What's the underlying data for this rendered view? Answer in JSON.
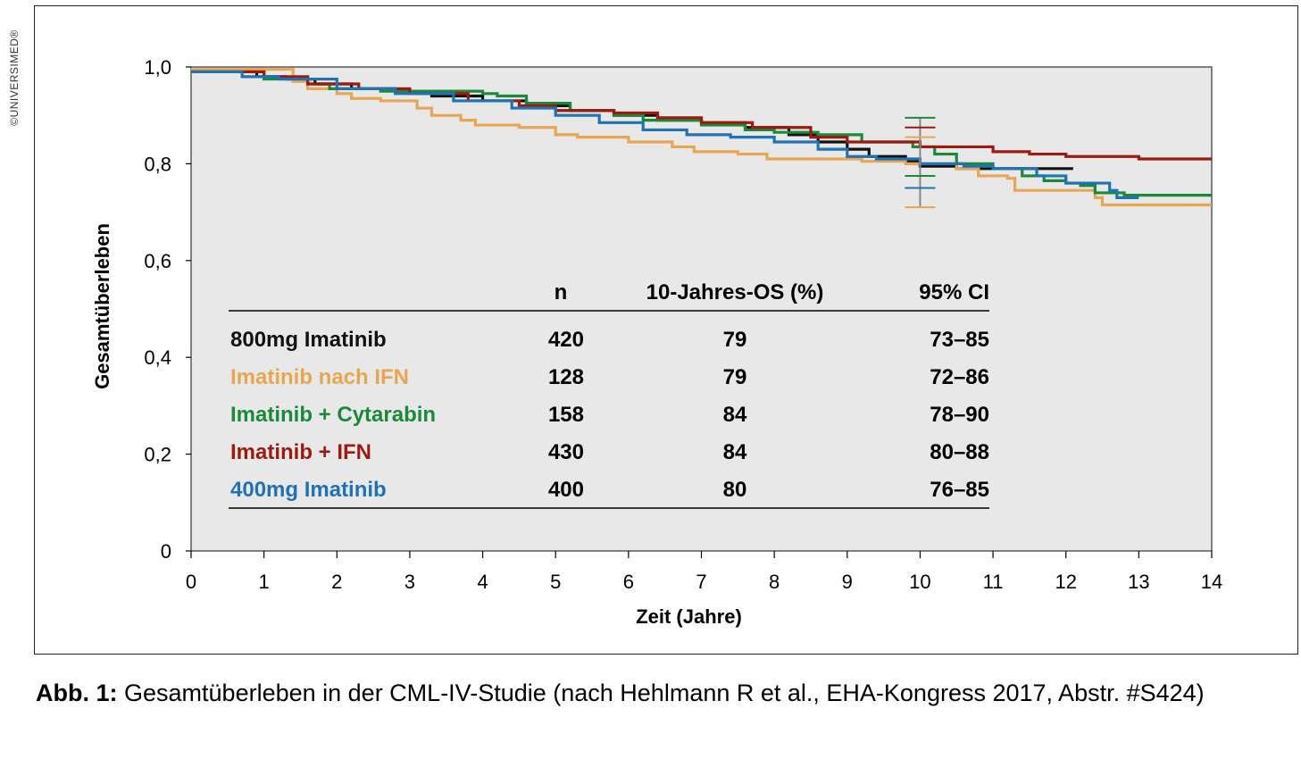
{
  "watermark": "©UNIVERSIMED®",
  "caption": {
    "label": "Abb. 1:",
    "text": "Gesamtüberleben in der CML-IV-Studie (nach Hehlmann R et al., EHA-Kongress 2017, Abstr. #S424)"
  },
  "colors": {
    "plot_bg": "#e8e8e8",
    "black": "#111111",
    "orange": "#e8a652",
    "green": "#1a8a3a",
    "red": "#9b1b10",
    "blue": "#1f72b4"
  },
  "chart_data": {
    "type": "line",
    "title": "",
    "xlabel": "Zeit (Jahre)",
    "ylabel": "Gesamtüberleben",
    "xlim": [
      0,
      14
    ],
    "ylim": [
      0,
      1
    ],
    "xticks": [
      "0",
      "1",
      "2",
      "3",
      "4",
      "5",
      "6",
      "7",
      "8",
      "9",
      "10",
      "11",
      "12",
      "13",
      "14"
    ],
    "yticks": [
      {
        "value": 0,
        "label": "0"
      },
      {
        "value": 0.2,
        "label": "0,2"
      },
      {
        "value": 0.4,
        "label": "0,4"
      },
      {
        "value": 0.6,
        "label": "0,6"
      },
      {
        "value": 0.8,
        "label": "0,8"
      },
      {
        "value": 1.0,
        "label": "1,0"
      }
    ],
    "grid": false,
    "table": {
      "headers": [
        "n",
        "10-Jahres-OS (%)",
        "95% CI"
      ],
      "rows": [
        {
          "name": "800mg Imatinib",
          "n": "420",
          "os": "79",
          "ci": "73–85",
          "color": "#111111"
        },
        {
          "name": "Imatinib nach IFN",
          "n": "128",
          "os": "79",
          "ci": "72–86",
          "color": "#e8a652"
        },
        {
          "name": "Imatinib + Cytarabin",
          "n": "158",
          "os": "84",
          "ci": "78–90",
          "color": "#1a8a3a"
        },
        {
          "name": "Imatinib + IFN",
          "n": "430",
          "os": "84",
          "ci": "80–88",
          "color": "#9b1b10"
        },
        {
          "name": "400mg Imatinib",
          "n": "400",
          "os": "80",
          "ci": "76–85",
          "color": "#1f72b4"
        }
      ]
    },
    "series": [
      {
        "id": "blk",
        "color": "#111111",
        "points": [
          [
            0,
            0.99
          ],
          [
            0.6,
            0.99
          ],
          [
            0.9,
            0.98
          ],
          [
            1.3,
            0.975
          ],
          [
            1.7,
            0.965
          ],
          [
            2.2,
            0.955
          ],
          [
            2.8,
            0.95
          ],
          [
            3.3,
            0.94
          ],
          [
            4,
            0.93
          ],
          [
            4.6,
            0.92
          ],
          [
            5.2,
            0.91
          ],
          [
            5.8,
            0.9
          ],
          [
            6.4,
            0.89
          ],
          [
            7.0,
            0.885
          ],
          [
            7.6,
            0.875
          ],
          [
            8.2,
            0.86
          ],
          [
            8.6,
            0.845
          ],
          [
            9.0,
            0.83
          ],
          [
            9.3,
            0.815
          ],
          [
            9.8,
            0.805
          ],
          [
            10.0,
            0.795
          ],
          [
            10.5,
            0.79
          ],
          [
            11.0,
            0.79
          ],
          [
            12.1,
            0.79
          ]
        ]
      },
      {
        "id": "org",
        "color": "#e8a652",
        "points": [
          [
            0,
            0.995
          ],
          [
            1.3,
            0.995
          ],
          [
            1.4,
            0.97
          ],
          [
            1.6,
            0.955
          ],
          [
            2.0,
            0.945
          ],
          [
            2.2,
            0.935
          ],
          [
            2.6,
            0.93
          ],
          [
            3.1,
            0.915
          ],
          [
            3.3,
            0.9
          ],
          [
            3.7,
            0.89
          ],
          [
            3.9,
            0.88
          ],
          [
            4.5,
            0.875
          ],
          [
            5.0,
            0.86
          ],
          [
            5.3,
            0.855
          ],
          [
            6.0,
            0.845
          ],
          [
            6.6,
            0.835
          ],
          [
            6.9,
            0.825
          ],
          [
            7.5,
            0.82
          ],
          [
            7.9,
            0.81
          ],
          [
            9.2,
            0.805
          ],
          [
            9.8,
            0.8
          ],
          [
            10.5,
            0.79
          ],
          [
            10.8,
            0.775
          ],
          [
            11.2,
            0.77
          ],
          [
            11.3,
            0.745
          ],
          [
            12.4,
            0.73
          ],
          [
            12.5,
            0.715
          ],
          [
            14,
            0.715
          ]
        ]
      },
      {
        "id": "grn",
        "color": "#1a8a3a",
        "points": [
          [
            0,
            0.99
          ],
          [
            0.8,
            0.99
          ],
          [
            1.0,
            0.975
          ],
          [
            1.6,
            0.965
          ],
          [
            1.9,
            0.955
          ],
          [
            2.6,
            0.95
          ],
          [
            3.3,
            0.95
          ],
          [
            4.0,
            0.945
          ],
          [
            4.2,
            0.94
          ],
          [
            4.6,
            0.925
          ],
          [
            5.2,
            0.91
          ],
          [
            5.8,
            0.9
          ],
          [
            6.2,
            0.89
          ],
          [
            7.0,
            0.88
          ],
          [
            7.6,
            0.87
          ],
          [
            8.0,
            0.865
          ],
          [
            8.6,
            0.86
          ],
          [
            9.2,
            0.845
          ],
          [
            9.9,
            0.835
          ],
          [
            10.2,
            0.82
          ],
          [
            10.5,
            0.8
          ],
          [
            11.0,
            0.79
          ],
          [
            11.4,
            0.775
          ],
          [
            11.7,
            0.765
          ],
          [
            12.0,
            0.76
          ],
          [
            12.2,
            0.755
          ],
          [
            12.4,
            0.74
          ],
          [
            12.8,
            0.735
          ],
          [
            14,
            0.735
          ]
        ]
      },
      {
        "id": "red",
        "color": "#9b1b10",
        "points": [
          [
            0,
            0.99
          ],
          [
            0.7,
            0.99
          ],
          [
            1.0,
            0.98
          ],
          [
            1.6,
            0.965
          ],
          [
            2.3,
            0.955
          ],
          [
            3.0,
            0.945
          ],
          [
            3.8,
            0.93
          ],
          [
            4.5,
            0.92
          ],
          [
            5.0,
            0.91
          ],
          [
            5.8,
            0.905
          ],
          [
            6.4,
            0.895
          ],
          [
            7.0,
            0.885
          ],
          [
            7.7,
            0.875
          ],
          [
            8.5,
            0.855
          ],
          [
            9.0,
            0.845
          ],
          [
            10.0,
            0.835
          ],
          [
            11.0,
            0.825
          ],
          [
            11.5,
            0.82
          ],
          [
            12.0,
            0.815
          ],
          [
            13.0,
            0.81
          ],
          [
            14,
            0.81
          ]
        ]
      },
      {
        "id": "blu",
        "color": "#1f72b4",
        "points": [
          [
            0,
            0.99
          ],
          [
            0.5,
            0.99
          ],
          [
            0.7,
            0.98
          ],
          [
            1.2,
            0.975
          ],
          [
            2.0,
            0.955
          ],
          [
            2.8,
            0.945
          ],
          [
            3.6,
            0.93
          ],
          [
            4.4,
            0.915
          ],
          [
            5.0,
            0.9
          ],
          [
            5.6,
            0.885
          ],
          [
            6.2,
            0.87
          ],
          [
            6.8,
            0.86
          ],
          [
            7.4,
            0.855
          ],
          [
            8.0,
            0.845
          ],
          [
            8.6,
            0.83
          ],
          [
            9.0,
            0.815
          ],
          [
            9.4,
            0.81
          ],
          [
            10.0,
            0.8
          ],
          [
            10.6,
            0.795
          ],
          [
            11.0,
            0.79
          ],
          [
            11.6,
            0.775
          ],
          [
            12.0,
            0.76
          ],
          [
            12.6,
            0.745
          ],
          [
            12.7,
            0.73
          ],
          [
            13,
            0.73
          ]
        ]
      }
    ],
    "error_bars": [
      {
        "x": 10.0,
        "lo": 0.71,
        "hi": 0.895,
        "color": "#888888"
      },
      {
        "x": 10.0,
        "y": 0.895,
        "color": "#1a8a3a",
        "cap_only": true
      },
      {
        "x": 10.0,
        "y": 0.875,
        "color": "#9b1b10",
        "cap_only": true
      },
      {
        "x": 10.0,
        "y": 0.855,
        "color": "#e8a652",
        "cap_only": true
      },
      {
        "x": 10.0,
        "y": 0.775,
        "color": "#1a8a3a",
        "cap_only": true
      },
      {
        "x": 10.0,
        "y": 0.75,
        "color": "#1f72b4",
        "cap_only": true
      },
      {
        "x": 10.0,
        "y": 0.71,
        "color": "#e8a652",
        "cap_only": true
      }
    ]
  }
}
